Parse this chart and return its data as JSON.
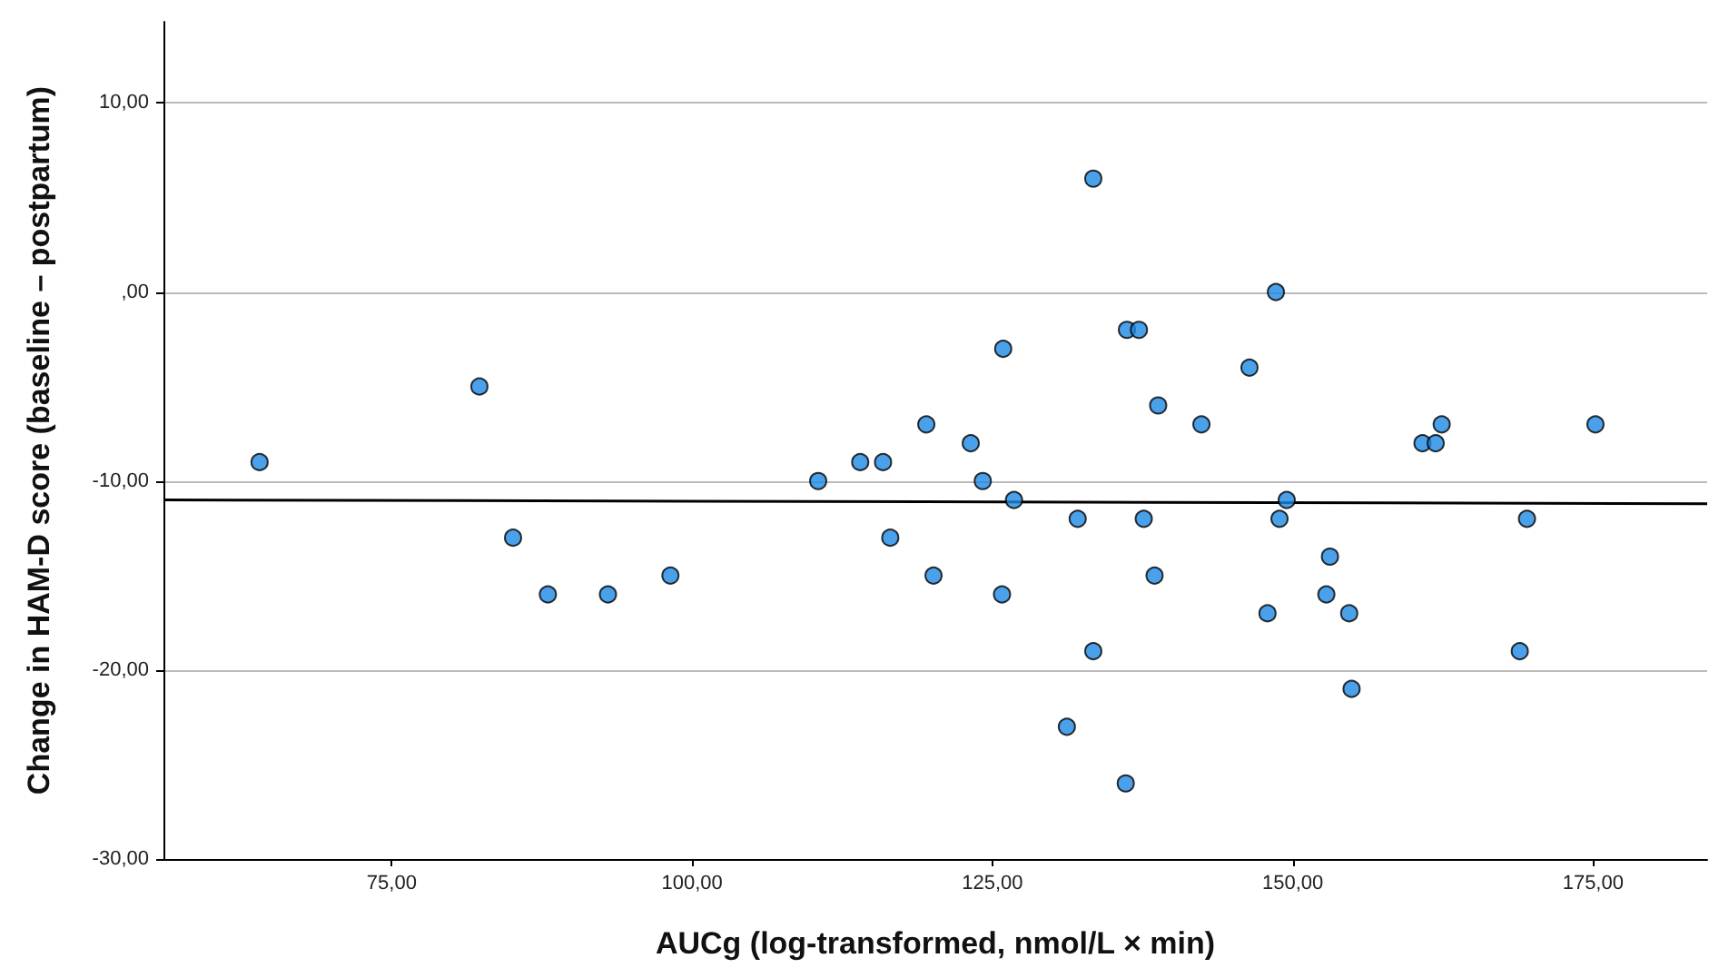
{
  "chart_data": {
    "type": "scatter",
    "xlabel": "AUCg (log-transformed, nmol/L × min)",
    "ylabel": "Change in HAM-D score (baseline – postpartum)",
    "xlim": [
      56,
      184.5
    ],
    "ylim": [
      -30,
      14.3
    ],
    "xticks": [
      {
        "value": 75,
        "label": "75,00"
      },
      {
        "value": 100,
        "label": "100,00"
      },
      {
        "value": 125,
        "label": "125,00"
      },
      {
        "value": 150,
        "label": "150,00"
      },
      {
        "value": 175,
        "label": "175,00"
      }
    ],
    "yticks": [
      {
        "value": -30,
        "label": "-30,00"
      },
      {
        "value": -20,
        "label": "-20,00"
      },
      {
        "value": -10,
        "label": "-10,00"
      },
      {
        "value": 0,
        "label": ",00"
      },
      {
        "value": 10,
        "label": "10,00"
      }
    ],
    "grid": "y",
    "marker": "circle",
    "series": [
      {
        "color": "#1e88e5",
        "x": [
          64.0,
          82.3,
          85.1,
          88.0,
          93.0,
          98.2,
          110.5,
          114.0,
          115.9,
          116.5,
          119.5,
          120.1,
          123.2,
          124.2,
          125.9,
          125.8,
          126.8,
          132.1,
          133.4,
          133.4,
          131.2,
          136.1,
          136.2,
          137.2,
          137.6,
          138.5,
          138.8,
          142.4,
          148.6,
          146.4,
          160.8,
          161.9,
          162.4,
          175.2,
          149.5,
          148.9,
          169.5,
          153.1,
          152.8,
          147.9,
          154.7,
          168.9,
          154.9
        ],
        "values": [
          -9,
          -5,
          -13,
          -16,
          -16,
          -15,
          -10,
          -9,
          -9,
          -13,
          -7,
          -15,
          -8,
          -10,
          -3,
          -16,
          -11,
          -12,
          6,
          -19,
          -23,
          -26,
          -2,
          -2,
          -12,
          -15,
          -6,
          -7,
          0,
          -4,
          -8,
          -8,
          -7,
          -7,
          -11,
          -12,
          -12,
          -14,
          -16,
          -17,
          -17,
          -19,
          -21
        ]
      },
      {
        "type": "line",
        "color": "#000000",
        "marker": "none",
        "x": [
          56,
          184.5
        ],
        "values": [
          -11.0,
          -11.2
        ]
      }
    ]
  }
}
